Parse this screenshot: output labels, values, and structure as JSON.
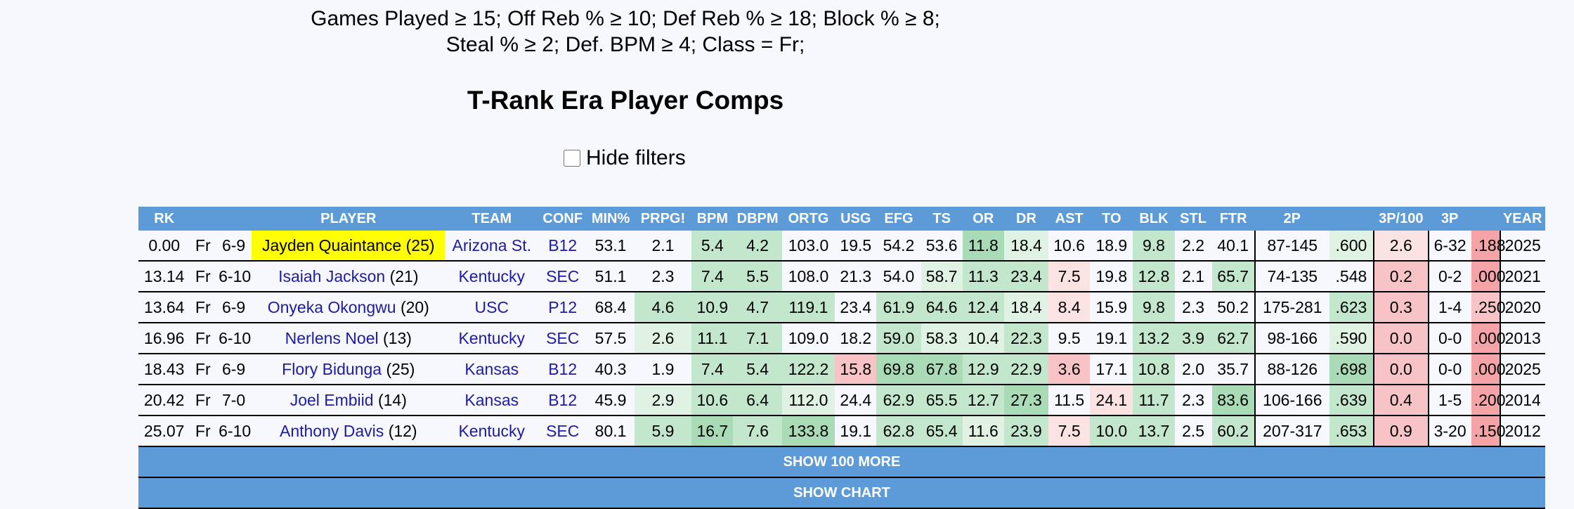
{
  "filters": {
    "line1": "Games Played ≥ 15; Off Reb % ≥ 10; Def Reb % ≥ 18; Block % ≥ 8;",
    "line2": "Steal % ≥ 2; Def. BPM ≥ 4; Class = Fr;"
  },
  "title": "T-Rank Era Player Comps",
  "hide_filters_label": "Hide filters",
  "columns": [
    "RK",
    "",
    "",
    "PLAYER",
    "TEAM",
    "CONF",
    "MIN%",
    "PRPG!",
    "BPM",
    "DBPM",
    "ORTG",
    "USG",
    "EFG",
    "TS",
    "OR",
    "DR",
    "AST",
    "TO",
    "BLK",
    "STL",
    "FTR",
    "2P",
    "",
    "3P/100",
    "3P",
    "",
    "YEAR"
  ],
  "rows": [
    {
      "rk": "0.00",
      "cls": "Fr",
      "ht": "6-9",
      "name": "Jayden Quaintance",
      "num": "(25)",
      "team": "Arizona St.",
      "conf": "B12",
      "min": "53.1",
      "prpg": "2.1",
      "bpm": "5.4",
      "dbpm": "4.2",
      "ortg": "103.0",
      "usg": "19.5",
      "efg": "54.2",
      "ts": "53.6",
      "or": "11.8",
      "dr": "18.4",
      "ast": "10.6",
      "to": "18.9",
      "blk": "9.8",
      "stl": "2.2",
      "ftr": "40.1",
      "twop": "87-145",
      "twop_pct": ".600",
      "threep100": "2.6",
      "threep": "6-32",
      "threep_pct": ".188",
      "year": "2025"
    },
    {
      "rk": "13.14",
      "cls": "Fr",
      "ht": "6-10",
      "name": "Isaiah Jackson",
      "num": "(21)",
      "team": "Kentucky",
      "conf": "SEC",
      "min": "51.1",
      "prpg": "2.3",
      "bpm": "7.4",
      "dbpm": "5.5",
      "ortg": "108.0",
      "usg": "21.3",
      "efg": "54.0",
      "ts": "58.7",
      "or": "11.3",
      "dr": "23.4",
      "ast": "7.5",
      "to": "19.8",
      "blk": "12.8",
      "stl": "2.1",
      "ftr": "65.7",
      "twop": "74-135",
      "twop_pct": ".548",
      "threep100": "0.2",
      "threep": "0-2",
      "threep_pct": ".000",
      "year": "2021"
    },
    {
      "rk": "13.64",
      "cls": "Fr",
      "ht": "6-9",
      "name": "Onyeka Okongwu",
      "num": "(20)",
      "team": "USC",
      "conf": "P12",
      "min": "68.4",
      "prpg": "4.6",
      "bpm": "10.9",
      "dbpm": "4.7",
      "ortg": "119.1",
      "usg": "23.4",
      "efg": "61.9",
      "ts": "64.6",
      "or": "12.4",
      "dr": "18.4",
      "ast": "8.4",
      "to": "15.9",
      "blk": "9.8",
      "stl": "2.3",
      "ftr": "50.2",
      "twop": "175-281",
      "twop_pct": ".623",
      "threep100": "0.3",
      "threep": "1-4",
      "threep_pct": ".250",
      "year": "2020"
    },
    {
      "rk": "16.96",
      "cls": "Fr",
      "ht": "6-10",
      "name": "Nerlens Noel",
      "num": "(13)",
      "team": "Kentucky",
      "conf": "SEC",
      "min": "57.5",
      "prpg": "2.6",
      "bpm": "11.1",
      "dbpm": "7.1",
      "ortg": "109.0",
      "usg": "18.2",
      "efg": "59.0",
      "ts": "58.3",
      "or": "10.4",
      "dr": "22.3",
      "ast": "9.5",
      "to": "19.1",
      "blk": "13.2",
      "stl": "3.9",
      "ftr": "62.7",
      "twop": "98-166",
      "twop_pct": ".590",
      "threep100": "0.0",
      "threep": "0-0",
      "threep_pct": ".000",
      "year": "2013"
    },
    {
      "rk": "18.43",
      "cls": "Fr",
      "ht": "6-9",
      "name": "Flory Bidunga",
      "num": "(25)",
      "team": "Kansas",
      "conf": "B12",
      "min": "40.3",
      "prpg": "1.9",
      "bpm": "7.4",
      "dbpm": "5.4",
      "ortg": "122.2",
      "usg": "15.8",
      "efg": "69.8",
      "ts": "67.8",
      "or": "12.9",
      "dr": "22.9",
      "ast": "3.6",
      "to": "17.1",
      "blk": "10.8",
      "stl": "2.0",
      "ftr": "35.7",
      "twop": "88-126",
      "twop_pct": ".698",
      "threep100": "0.0",
      "threep": "0-0",
      "threep_pct": ".000",
      "year": "2025"
    },
    {
      "rk": "20.42",
      "cls": "Fr",
      "ht": "7-0",
      "name": "Joel Embiid",
      "num": "(14)",
      "team": "Kansas",
      "conf": "B12",
      "min": "45.9",
      "prpg": "2.9",
      "bpm": "10.6",
      "dbpm": "6.4",
      "ortg": "112.0",
      "usg": "24.4",
      "efg": "62.9",
      "ts": "65.5",
      "or": "12.7",
      "dr": "27.3",
      "ast": "11.5",
      "to": "24.1",
      "blk": "11.7",
      "stl": "2.3",
      "ftr": "83.6",
      "twop": "106-166",
      "twop_pct": ".639",
      "threep100": "0.4",
      "threep": "1-5",
      "threep_pct": ".200",
      "year": "2014"
    },
    {
      "rk": "25.07",
      "cls": "Fr",
      "ht": "6-10",
      "name": "Anthony Davis",
      "num": "(12)",
      "team": "Kentucky",
      "conf": "SEC",
      "min": "80.1",
      "prpg": "5.9",
      "bpm": "16.7",
      "dbpm": "7.6",
      "ortg": "133.8",
      "usg": "19.1",
      "efg": "62.8",
      "ts": "65.4",
      "or": "11.6",
      "dr": "23.9",
      "ast": "7.5",
      "to": "10.0",
      "blk": "13.7",
      "stl": "2.5",
      "ftr": "60.2",
      "twop": "207-317",
      "twop_pct": ".653",
      "threep100": "0.9",
      "threep": "3-20",
      "threep_pct": ".150",
      "year": "2012"
    }
  ],
  "cell_shades": [
    {
      "prpg": "",
      "bpm": "g2",
      "dbpm": "g2",
      "ortg": "",
      "usg": "",
      "efg": "",
      "ts": "",
      "or": "g3",
      "dr": "g1",
      "ast": "",
      "to": "",
      "blk": "g2",
      "stl": "",
      "ftr": "",
      "twop_pct": "g1",
      "threep100": "r1",
      "threep_pct": "r3"
    },
    {
      "prpg": "",
      "bpm": "g2",
      "dbpm": "g2",
      "ortg": "",
      "usg": "",
      "efg": "",
      "ts": "g1",
      "or": "g2",
      "dr": "g2",
      "ast": "r1",
      "to": "",
      "blk": "g2",
      "stl": "",
      "ftr": "g2",
      "twop_pct": "",
      "threep100": "r2",
      "threep_pct": "r3"
    },
    {
      "prpg": "g2",
      "bpm": "g2",
      "dbpm": "g2",
      "ortg": "g2",
      "usg": "",
      "efg": "g2",
      "ts": "g2",
      "or": "g2",
      "dr": "g1",
      "ast": "r1",
      "to": "",
      "blk": "g2",
      "stl": "",
      "ftr": "",
      "twop_pct": "g2",
      "threep100": "r2",
      "threep_pct": "r2"
    },
    {
      "prpg": "g1",
      "bpm": "g2",
      "dbpm": "g2",
      "ortg": "",
      "usg": "",
      "efg": "g2",
      "ts": "g1",
      "or": "g1",
      "dr": "g2",
      "ast": "",
      "to": "",
      "blk": "g2",
      "stl": "g2",
      "ftr": "g2",
      "twop_pct": "g1",
      "threep100": "r2",
      "threep_pct": "r3"
    },
    {
      "prpg": "",
      "bpm": "g2",
      "dbpm": "g2",
      "ortg": "g2",
      "usg": "r2",
      "efg": "g3",
      "ts": "g3",
      "or": "g2",
      "dr": "g2",
      "ast": "r2",
      "to": "",
      "blk": "g2",
      "stl": "",
      "ftr": "",
      "twop_pct": "g3",
      "threep100": "r2",
      "threep_pct": "r3"
    },
    {
      "prpg": "g1",
      "bpm": "g2",
      "dbpm": "g2",
      "ortg": "g1",
      "usg": "",
      "efg": "g2",
      "ts": "g2",
      "or": "g2",
      "dr": "g3",
      "ast": "",
      "to": "r1",
      "blk": "g2",
      "stl": "",
      "ftr": "g3",
      "twop_pct": "g2",
      "threep100": "r2",
      "threep_pct": "r3"
    },
    {
      "prpg": "g2",
      "bpm": "g3",
      "dbpm": "g2",
      "ortg": "g3",
      "usg": "",
      "efg": "g2",
      "ts": "g2",
      "or": "g1",
      "dr": "g2",
      "ast": "r1",
      "to": "g2",
      "blk": "g2",
      "stl": "",
      "ftr": "g2",
      "twop_pct": "g2",
      "threep100": "r2",
      "threep_pct": "r3"
    }
  ],
  "buttons": {
    "show_more": "SHOW 100 MORE",
    "show_chart": "SHOW CHART"
  },
  "colors": {
    "header_bg": "#5d9bd8",
    "highlight": "#ffff00",
    "link": "#1d1aa3"
  }
}
